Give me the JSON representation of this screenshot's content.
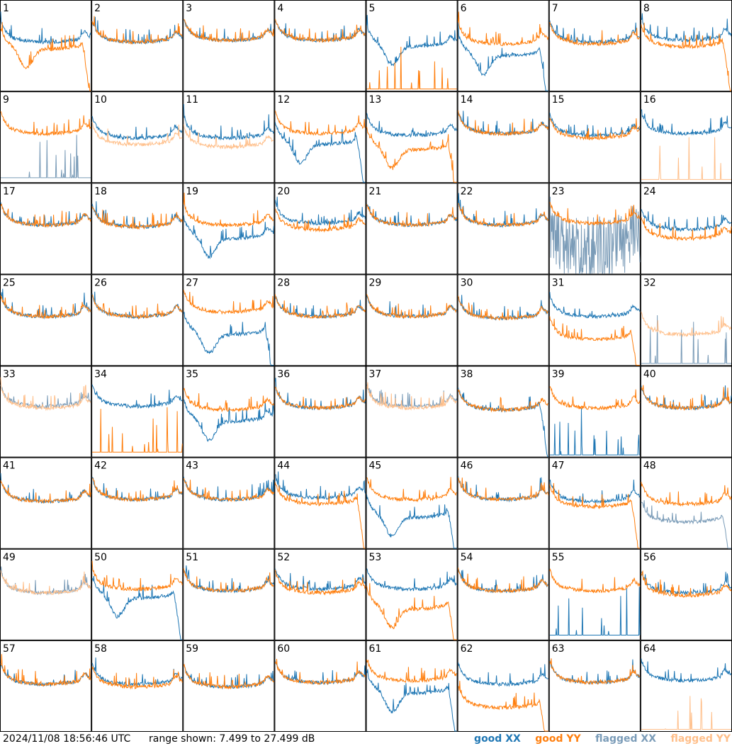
{
  "chart_data": {
    "type": "line",
    "title": "",
    "grid": {
      "rows": 8,
      "cols": 8
    },
    "yrange_db": [
      7.499,
      27.499
    ],
    "legend": [
      {
        "name": "good XX",
        "color": "#1f77b4"
      },
      {
        "name": "good YY",
        "color": "#ff7f0e"
      },
      {
        "name": "flagged XX",
        "color": "#7b9cb8"
      },
      {
        "name": "flagged YY",
        "color": "#ffbf8a"
      }
    ],
    "panels": [
      {
        "label": "1",
        "xx": {
          "shape": "flat",
          "level": 0.6,
          "flagged": false
        },
        "yy": {
          "shape": "sag_drop",
          "level": 0.52,
          "flagged": false
        }
      },
      {
        "label": "2",
        "xx": {
          "shape": "flat",
          "level": 0.6,
          "flagged": false
        },
        "yy": {
          "shape": "flat",
          "level": 0.6,
          "flagged": false
        }
      },
      {
        "label": "3",
        "xx": {
          "shape": "flat",
          "level": 0.62,
          "flagged": false
        },
        "yy": {
          "shape": "flat",
          "level": 0.62,
          "flagged": false
        }
      },
      {
        "label": "4",
        "xx": {
          "shape": "flat",
          "level": 0.62,
          "flagged": false
        },
        "yy": {
          "shape": "flat",
          "level": 0.62,
          "flagged": false
        }
      },
      {
        "label": "5",
        "xx": {
          "shape": "sag",
          "level": 0.55,
          "flagged": false
        },
        "yy": {
          "shape": "spiky_low",
          "level": 0.02,
          "flagged": false
        }
      },
      {
        "label": "6",
        "xx": {
          "shape": "sag_drop",
          "level": 0.45,
          "flagged": false
        },
        "yy": {
          "shape": "flat",
          "level": 0.58,
          "flagged": false
        }
      },
      {
        "label": "7",
        "xx": {
          "shape": "flat",
          "level": 0.6,
          "flagged": false
        },
        "yy": {
          "shape": "flat",
          "level": 0.58,
          "flagged": false
        }
      },
      {
        "label": "8",
        "xx": {
          "shape": "flat",
          "level": 0.62,
          "flagged": false
        },
        "yy": {
          "shape": "drop",
          "level": 0.55,
          "flagged": false
        }
      },
      {
        "label": "9",
        "xx": {
          "shape": "spiky_low",
          "level": 0.05,
          "flagged": true
        },
        "yy": {
          "shape": "flat",
          "level": 0.6,
          "flagged": false
        }
      },
      {
        "label": "10",
        "xx": {
          "shape": "flat",
          "level": 0.55,
          "flagged": false
        },
        "yy": {
          "shape": "flat",
          "level": 0.48,
          "flagged": true
        }
      },
      {
        "label": "11",
        "xx": {
          "shape": "flat",
          "level": 0.55,
          "flagged": false
        },
        "yy": {
          "shape": "flat",
          "level": 0.45,
          "flagged": true
        }
      },
      {
        "label": "12",
        "xx": {
          "shape": "sag_drop",
          "level": 0.48,
          "flagged": false
        },
        "yy": {
          "shape": "flat",
          "level": 0.6,
          "flagged": false
        }
      },
      {
        "label": "13",
        "xx": {
          "shape": "flat",
          "level": 0.58,
          "flagged": false
        },
        "yy": {
          "shape": "sag_drop",
          "level": 0.42,
          "flagged": false
        }
      },
      {
        "label": "14",
        "xx": {
          "shape": "flat",
          "level": 0.6,
          "flagged": false
        },
        "yy": {
          "shape": "flat",
          "level": 0.6,
          "flagged": false
        }
      },
      {
        "label": "15",
        "xx": {
          "shape": "flat",
          "level": 0.58,
          "flagged": false
        },
        "yy": {
          "shape": "flat",
          "level": 0.55,
          "flagged": false
        }
      },
      {
        "label": "16",
        "xx": {
          "shape": "flat",
          "level": 0.6,
          "flagged": false
        },
        "yy": {
          "shape": "spiky_low",
          "level": 0.03,
          "flagged": true
        }
      },
      {
        "label": "17",
        "xx": {
          "shape": "flat",
          "level": 0.6,
          "flagged": false
        },
        "yy": {
          "shape": "flat",
          "level": 0.6,
          "flagged": false
        }
      },
      {
        "label": "18",
        "xx": {
          "shape": "flat",
          "level": 0.58,
          "flagged": false
        },
        "yy": {
          "shape": "flat",
          "level": 0.58,
          "flagged": false
        }
      },
      {
        "label": "19",
        "xx": {
          "shape": "sag",
          "level": 0.45,
          "flagged": false
        },
        "yy": {
          "shape": "flat",
          "level": 0.6,
          "flagged": false
        }
      },
      {
        "label": "20",
        "xx": {
          "shape": "flat",
          "level": 0.62,
          "flagged": false
        },
        "yy": {
          "shape": "flat",
          "level": 0.55,
          "flagged": false
        }
      },
      {
        "label": "21",
        "xx": {
          "shape": "flat",
          "level": 0.6,
          "flagged": false
        },
        "yy": {
          "shape": "flat",
          "level": 0.6,
          "flagged": false
        }
      },
      {
        "label": "22",
        "xx": {
          "shape": "flat",
          "level": 0.6,
          "flagged": false
        },
        "yy": {
          "shape": "flat",
          "level": 0.6,
          "flagged": false
        }
      },
      {
        "label": "23",
        "xx": {
          "shape": "noisy",
          "level": 0.35,
          "flagged": true
        },
        "yy": {
          "shape": "flat",
          "level": 0.62,
          "flagged": false
        }
      },
      {
        "label": "24",
        "xx": {
          "shape": "flat",
          "level": 0.55,
          "flagged": false
        },
        "yy": {
          "shape": "flat",
          "level": 0.45,
          "flagged": false
        }
      },
      {
        "label": "25",
        "xx": {
          "shape": "flat",
          "level": 0.6,
          "flagged": false
        },
        "yy": {
          "shape": "flat",
          "level": 0.6,
          "flagged": false
        }
      },
      {
        "label": "26",
        "xx": {
          "shape": "flat",
          "level": 0.6,
          "flagged": false
        },
        "yy": {
          "shape": "flat",
          "level": 0.6,
          "flagged": false
        }
      },
      {
        "label": "27",
        "xx": {
          "shape": "sag_drop",
          "level": 0.4,
          "flagged": false
        },
        "yy": {
          "shape": "flat",
          "level": 0.65,
          "flagged": false
        }
      },
      {
        "label": "28",
        "xx": {
          "shape": "flat",
          "level": 0.6,
          "flagged": false
        },
        "yy": {
          "shape": "flat",
          "level": 0.6,
          "flagged": false
        }
      },
      {
        "label": "29",
        "xx": {
          "shape": "flat",
          "level": 0.6,
          "flagged": false
        },
        "yy": {
          "shape": "flat",
          "level": 0.6,
          "flagged": false
        }
      },
      {
        "label": "30",
        "xx": {
          "shape": "flat",
          "level": 0.58,
          "flagged": false
        },
        "yy": {
          "shape": "flat",
          "level": 0.58,
          "flagged": false
        }
      },
      {
        "label": "31",
        "xx": {
          "shape": "flat",
          "level": 0.6,
          "flagged": false
        },
        "yy": {
          "shape": "drop",
          "level": 0.35,
          "flagged": false
        }
      },
      {
        "label": "32",
        "xx": {
          "shape": "spiky_low",
          "level": 0.02,
          "flagged": true
        },
        "yy": {
          "shape": "flat",
          "level": 0.4,
          "flagged": true
        }
      },
      {
        "label": "33",
        "xx": {
          "shape": "flat",
          "level": 0.62,
          "flagged": true
        },
        "yy": {
          "shape": "flat",
          "level": 0.6,
          "flagged": true
        }
      },
      {
        "label": "34",
        "xx": {
          "shape": "flat",
          "level": 0.62,
          "flagged": false
        },
        "yy": {
          "shape": "spiky_low",
          "level": 0.05,
          "flagged": false
        }
      },
      {
        "label": "35",
        "xx": {
          "shape": "sag",
          "level": 0.45,
          "flagged": false
        },
        "yy": {
          "shape": "flat",
          "level": 0.58,
          "flagged": false
        }
      },
      {
        "label": "36",
        "xx": {
          "shape": "flat",
          "level": 0.6,
          "flagged": false
        },
        "yy": {
          "shape": "flat",
          "level": 0.6,
          "flagged": false
        }
      },
      {
        "label": "37",
        "xx": {
          "shape": "flat",
          "level": 0.62,
          "flagged": true
        },
        "yy": {
          "shape": "flat",
          "level": 0.6,
          "flagged": true
        }
      },
      {
        "label": "38",
        "xx": {
          "shape": "drop",
          "level": 0.58,
          "flagged": false
        },
        "yy": {
          "shape": "flat",
          "level": 0.58,
          "flagged": false
        }
      },
      {
        "label": "39",
        "xx": {
          "shape": "spiky_low",
          "level": 0.02,
          "flagged": false
        },
        "yy": {
          "shape": "flat",
          "level": 0.6,
          "flagged": false
        }
      },
      {
        "label": "40",
        "xx": {
          "shape": "flat",
          "level": 0.6,
          "flagged": false
        },
        "yy": {
          "shape": "flat",
          "level": 0.6,
          "flagged": false
        }
      },
      {
        "label": "41",
        "xx": {
          "shape": "flat",
          "level": 0.58,
          "flagged": false
        },
        "yy": {
          "shape": "flat",
          "level": 0.58,
          "flagged": false
        }
      },
      {
        "label": "42",
        "xx": {
          "shape": "flat",
          "level": 0.6,
          "flagged": false
        },
        "yy": {
          "shape": "flat",
          "level": 0.6,
          "flagged": false
        }
      },
      {
        "label": "43",
        "xx": {
          "shape": "flat",
          "level": 0.6,
          "flagged": false
        },
        "yy": {
          "shape": "flat",
          "level": 0.6,
          "flagged": false
        }
      },
      {
        "label": "44",
        "xx": {
          "shape": "flat",
          "level": 0.62,
          "flagged": false
        },
        "yy": {
          "shape": "drop",
          "level": 0.55,
          "flagged": false
        }
      },
      {
        "label": "45",
        "xx": {
          "shape": "sag_drop",
          "level": 0.4,
          "flagged": false
        },
        "yy": {
          "shape": "flat",
          "level": 0.6,
          "flagged": false
        }
      },
      {
        "label": "46",
        "xx": {
          "shape": "flat",
          "level": 0.6,
          "flagged": false
        },
        "yy": {
          "shape": "flat",
          "level": 0.6,
          "flagged": false
        }
      },
      {
        "label": "47",
        "xx": {
          "shape": "flat",
          "level": 0.58,
          "flagged": false
        },
        "yy": {
          "shape": "drop",
          "level": 0.52,
          "flagged": false
        }
      },
      {
        "label": "48",
        "xx": {
          "shape": "drop",
          "level": 0.35,
          "flagged": true
        },
        "yy": {
          "shape": "flat",
          "level": 0.55,
          "flagged": false
        }
      },
      {
        "label": "49",
        "xx": {
          "shape": "flat",
          "level": 0.58,
          "flagged": true
        },
        "yy": {
          "shape": "flat",
          "level": 0.58,
          "flagged": true
        }
      },
      {
        "label": "50",
        "xx": {
          "shape": "sag_drop",
          "level": 0.52,
          "flagged": false
        },
        "yy": {
          "shape": "flat",
          "level": 0.62,
          "flagged": false
        }
      },
      {
        "label": "51",
        "xx": {
          "shape": "flat",
          "level": 0.6,
          "flagged": false
        },
        "yy": {
          "shape": "flat",
          "level": 0.6,
          "flagged": false
        }
      },
      {
        "label": "52",
        "xx": {
          "shape": "flat",
          "level": 0.62,
          "flagged": false
        },
        "yy": {
          "shape": "flat",
          "level": 0.58,
          "flagged": false
        }
      },
      {
        "label": "53",
        "xx": {
          "shape": "flat",
          "level": 0.62,
          "flagged": false
        },
        "yy": {
          "shape": "sag_drop",
          "level": 0.4,
          "flagged": false
        }
      },
      {
        "label": "54",
        "xx": {
          "shape": "flat",
          "level": 0.6,
          "flagged": false
        },
        "yy": {
          "shape": "flat",
          "level": 0.6,
          "flagged": false
        }
      },
      {
        "label": "55",
        "xx": {
          "shape": "spiky_low",
          "level": 0.05,
          "flagged": false
        },
        "yy": {
          "shape": "flat",
          "level": 0.6,
          "flagged": false
        }
      },
      {
        "label": "56",
        "xx": {
          "shape": "flat",
          "level": 0.58,
          "flagged": false
        },
        "yy": {
          "shape": "flat",
          "level": 0.55,
          "flagged": false
        }
      },
      {
        "label": "57",
        "xx": {
          "shape": "flat",
          "level": 0.58,
          "flagged": false
        },
        "yy": {
          "shape": "flat",
          "level": 0.58,
          "flagged": false
        }
      },
      {
        "label": "58",
        "xx": {
          "shape": "flat",
          "level": 0.58,
          "flagged": false
        },
        "yy": {
          "shape": "flat",
          "level": 0.55,
          "flagged": false
        }
      },
      {
        "label": "59",
        "xx": {
          "shape": "flat",
          "level": 0.55,
          "flagged": false
        },
        "yy": {
          "shape": "flat",
          "level": 0.55,
          "flagged": false
        }
      },
      {
        "label": "60",
        "xx": {
          "shape": "flat",
          "level": 0.6,
          "flagged": false
        },
        "yy": {
          "shape": "flat",
          "level": 0.6,
          "flagged": false
        }
      },
      {
        "label": "61",
        "xx": {
          "shape": "sag_drop",
          "level": 0.48,
          "flagged": false
        },
        "yy": {
          "shape": "flat",
          "level": 0.62,
          "flagged": false
        }
      },
      {
        "label": "62",
        "xx": {
          "shape": "flat",
          "level": 0.58,
          "flagged": false
        },
        "yy": {
          "shape": "drop",
          "level": 0.32,
          "flagged": false
        }
      },
      {
        "label": "63",
        "xx": {
          "shape": "flat",
          "level": 0.6,
          "flagged": false
        },
        "yy": {
          "shape": "flat",
          "level": 0.6,
          "flagged": false
        }
      },
      {
        "label": "64",
        "xx": {
          "shape": "flat",
          "level": 0.62,
          "flagged": false
        },
        "yy": {
          "shape": "spiky_low",
          "level": 0.02,
          "flagged": true
        }
      }
    ]
  },
  "footer": {
    "timestamp": "2024/11/08 18:56:46 UTC",
    "range": "range shown: 7.499 to 27.499 dB",
    "legend_good_xx": "good XX",
    "legend_good_yy": "good YY",
    "legend_flagged_xx": "flagged XX",
    "legend_flagged_yy": "flagged YY"
  }
}
